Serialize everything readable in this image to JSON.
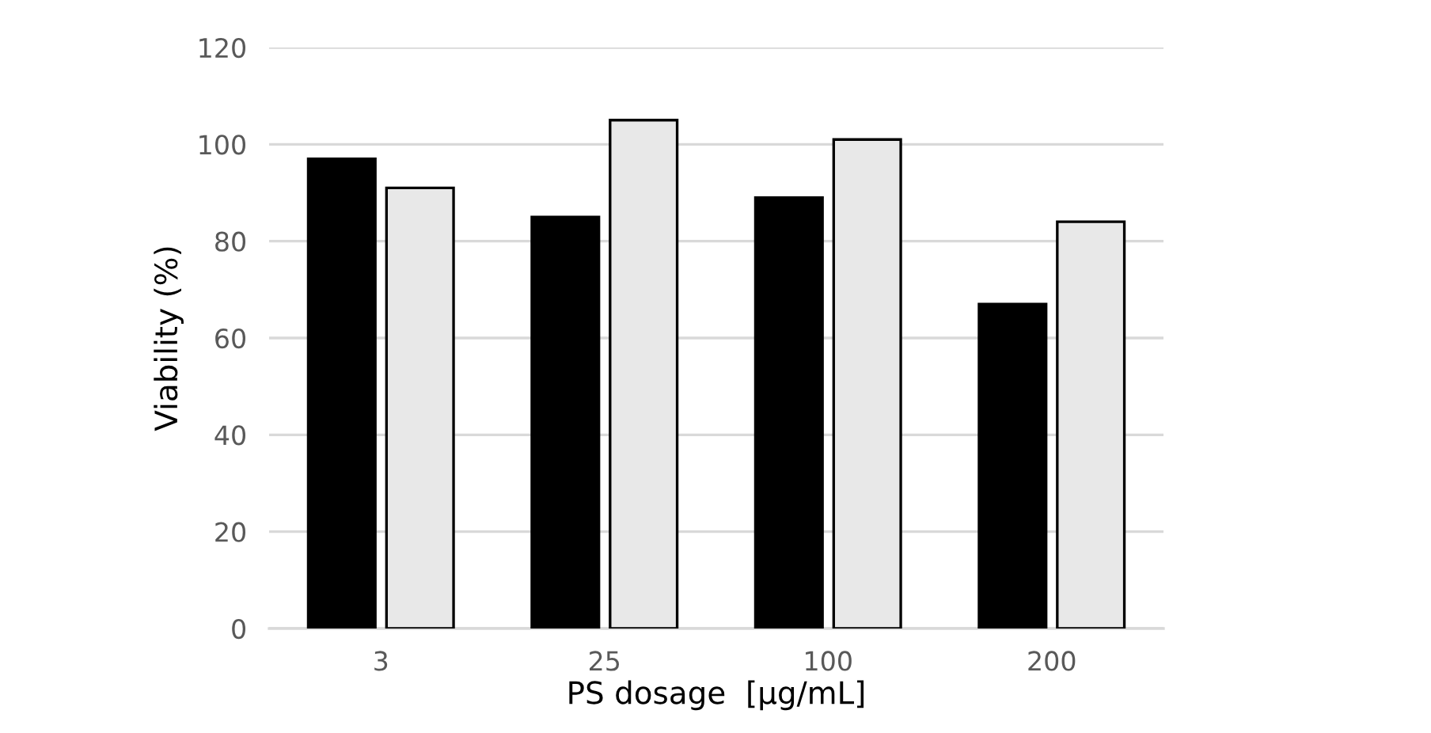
{
  "chart_data": {
    "type": "bar",
    "xlabel": "PS dosage  [µg/mL]",
    "ylabel": "Viability (%)",
    "categories": [
      "3",
      "25",
      "100",
      "200"
    ],
    "series": [
      {
        "color": "#000000",
        "values": [
          97,
          85,
          89,
          67
        ]
      },
      {
        "color": "#e8e8e8",
        "values": [
          91,
          105,
          101,
          84
        ]
      }
    ],
    "ylim": [
      0,
      120
    ],
    "yticks": [
      0,
      20,
      40,
      60,
      80,
      100,
      120
    ],
    "grid": "y",
    "legend": false
  }
}
